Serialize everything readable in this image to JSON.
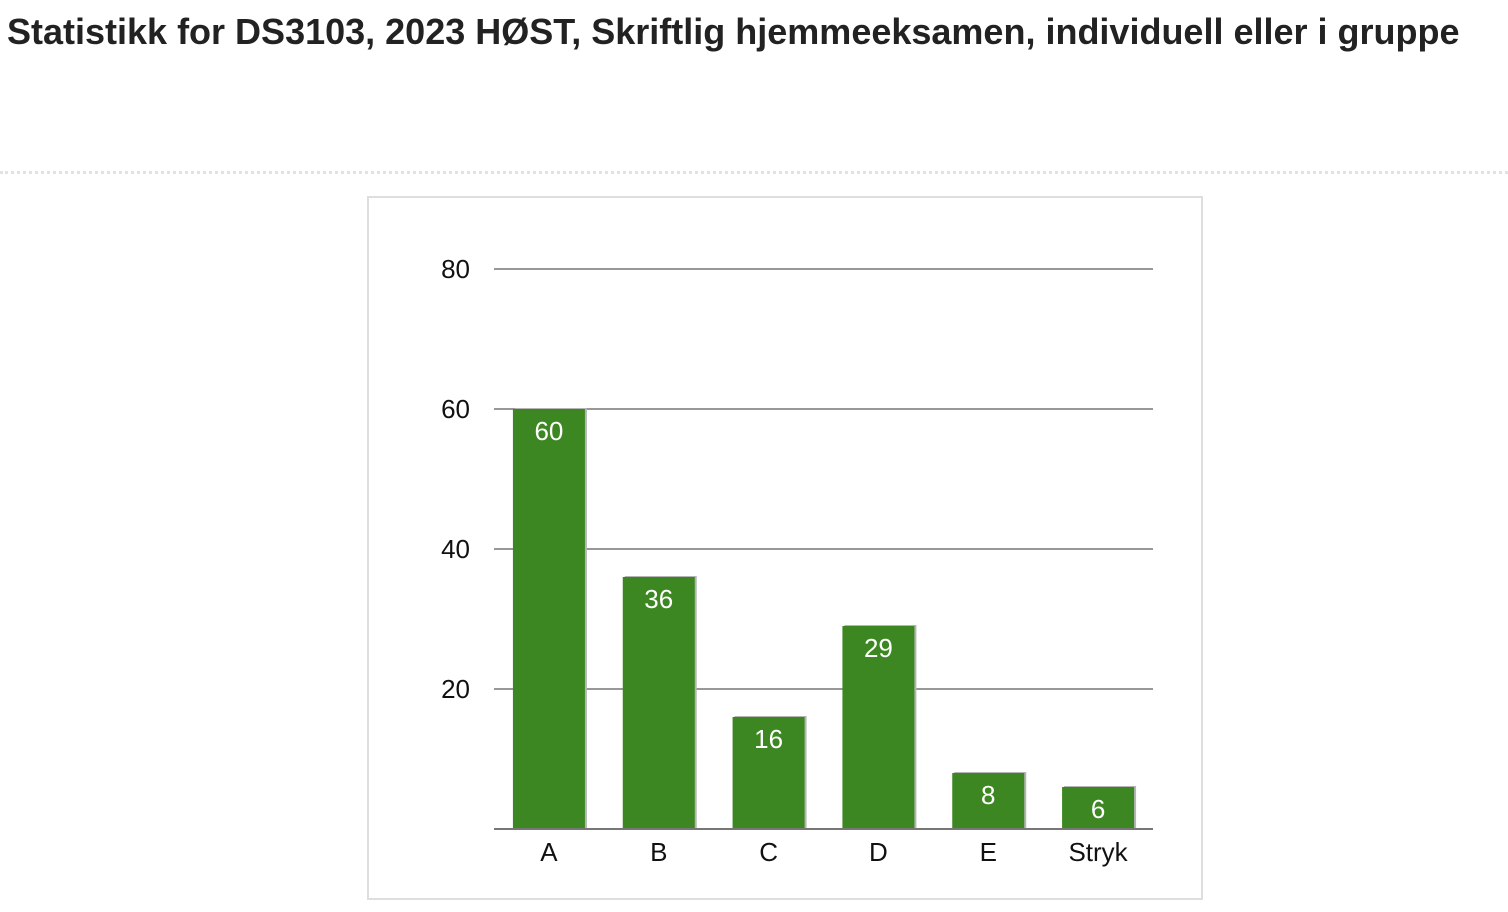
{
  "title": "Statistikk for DS3103, 2023 HØST, Skriftlig hjemmeeksamen, individuell eller i gruppe",
  "colors": {
    "bar": "#3c8722",
    "bar_shadow": "#b5b5b5",
    "gridline": "#777777",
    "title": "#222222"
  },
  "chart_data": {
    "type": "bar",
    "title": "",
    "xlabel": "",
    "ylabel": "",
    "categories": [
      "A",
      "B",
      "C",
      "D",
      "E",
      "Stryk"
    ],
    "values": [
      60,
      36,
      16,
      29,
      8,
      6
    ],
    "data_labels": [
      "60",
      "36",
      "16",
      "29",
      "8",
      "6"
    ],
    "ylim": [
      0,
      80
    ],
    "yticks": [
      20,
      40,
      60,
      80
    ],
    "ytick_labels": [
      "20",
      "40",
      "60",
      "80"
    ],
    "grid": true,
    "legend": "none"
  }
}
